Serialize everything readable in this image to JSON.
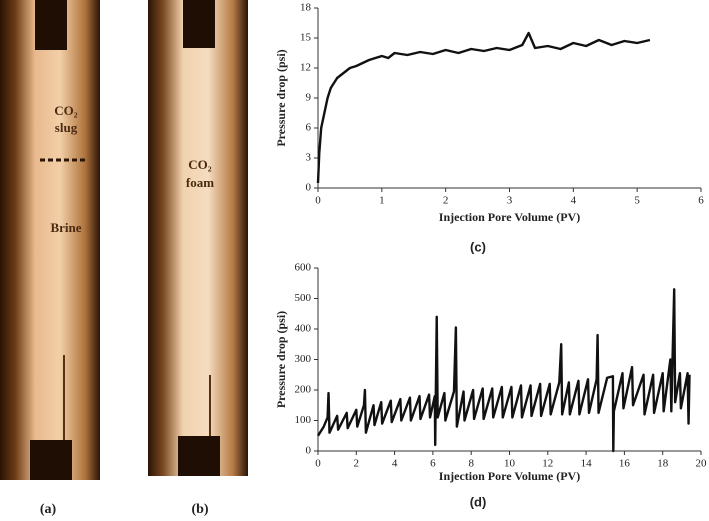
{
  "photos": [
    {
      "labels": [
        "CO₂",
        "slug",
        "Brine"
      ],
      "caption": "(a)"
    },
    {
      "labels": [
        "CO₂",
        "foam"
      ],
      "caption": "(b)"
    }
  ],
  "chart_data": [
    {
      "type": "line",
      "caption": "(c)",
      "x_label": "Injection Pore Volume (PV)",
      "y_label": "Pressure drop (psi)",
      "x": [
        0,
        0.02,
        0.05,
        0.1,
        0.15,
        0.2,
        0.25,
        0.3,
        0.4,
        0.5,
        0.6,
        0.7,
        0.8,
        0.9,
        1.0,
        1.1,
        1.2,
        1.4,
        1.6,
        1.8,
        2.0,
        2.2,
        2.4,
        2.6,
        2.8,
        3.0,
        3.2,
        3.3,
        3.4,
        3.6,
        3.8,
        4.0,
        4.2,
        4.4,
        4.6,
        4.8,
        5.0,
        5.2
      ],
      "series": [
        {
          "color": "#111111",
          "values": [
            0.5,
            3.5,
            6,
            7.5,
            9,
            10,
            10.5,
            11,
            11.5,
            12,
            12.2,
            12.5,
            12.8,
            13,
            13.2,
            13,
            13.5,
            13.3,
            13.6,
            13.4,
            13.8,
            13.5,
            13.9,
            13.7,
            14,
            13.8,
            14.3,
            15.5,
            14,
            14.2,
            13.9,
            14.5,
            14.2,
            14.8,
            14.3,
            14.7,
            14.5,
            14.8
          ]
        }
      ],
      "xlim": [
        0,
        6
      ],
      "ylim": [
        0,
        18
      ],
      "xticks": [
        0,
        1,
        2,
        3,
        4,
        5,
        6
      ],
      "yticks": [
        0,
        3,
        6,
        9,
        12,
        15,
        18
      ]
    },
    {
      "type": "line",
      "caption": "(d)",
      "x_label": "Injection Pore Volume (PV)",
      "y_label": "Pressure drop (psi)",
      "x": [
        0,
        0.3,
        0.5,
        0.55,
        0.6,
        1.0,
        1.05,
        1.5,
        1.55,
        2.0,
        2.05,
        2.4,
        2.45,
        2.5,
        2.9,
        2.95,
        3.3,
        3.35,
        3.8,
        3.85,
        4.3,
        4.35,
        4.8,
        4.85,
        5.3,
        5.35,
        5.8,
        5.85,
        6.1,
        6.12,
        6.2,
        6.25,
        6.6,
        6.65,
        7.1,
        7.2,
        7.25,
        7.6,
        7.65,
        8.1,
        8.15,
        8.6,
        8.65,
        9.1,
        9.15,
        9.6,
        9.65,
        10.1,
        10.15,
        10.6,
        10.65,
        11.1,
        11.15,
        11.6,
        11.65,
        12.1,
        12.15,
        12.6,
        12.7,
        12.75,
        13.1,
        13.15,
        13.6,
        13.65,
        14.1,
        14.15,
        14.55,
        14.6,
        14.65,
        15.1,
        15.4,
        15.42,
        15.45,
        15.9,
        15.95,
        16.4,
        16.45,
        17.0,
        17.05,
        17.5,
        17.55,
        18.0,
        18.05,
        18.4,
        18.45,
        18.6,
        18.65,
        18.9,
        18.95,
        19.3,
        19.35,
        19.4
      ],
      "series": [
        {
          "color": "#111111",
          "values": [
            50,
            80,
            110,
            190,
            60,
            115,
            70,
            125,
            75,
            135,
            80,
            150,
            200,
            60,
            150,
            85,
            160,
            90,
            165,
            95,
            170,
            100,
            175,
            100,
            180,
            105,
            185,
            110,
            180,
            20,
            440,
            110,
            190,
            100,
            195,
            405,
            80,
            195,
            100,
            200,
            105,
            205,
            105,
            205,
            110,
            210,
            110,
            210,
            110,
            215,
            110,
            215,
            115,
            220,
            115,
            220,
            120,
            225,
            350,
            120,
            225,
            120,
            230,
            120,
            235,
            125,
            235,
            380,
            125,
            240,
            245,
            0,
            130,
            255,
            140,
            275,
            150,
            250,
            120,
            250,
            125,
            255,
            130,
            300,
            130,
            530,
            160,
            255,
            140,
            255,
            90,
            250
          ]
        }
      ],
      "xlim": [
        0,
        20
      ],
      "ylim": [
        0,
        600
      ],
      "xticks": [
        0,
        2,
        4,
        6,
        8,
        10,
        12,
        14,
        16,
        18,
        20
      ],
      "yticks": [
        0,
        100,
        200,
        300,
        400,
        500,
        600
      ]
    }
  ]
}
